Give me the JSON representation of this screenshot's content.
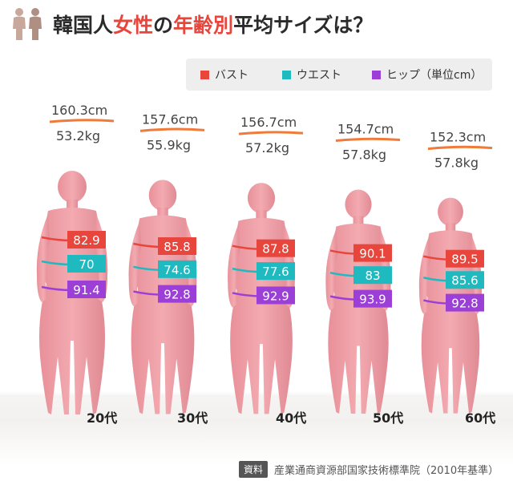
{
  "header": {
    "title_part1": "韓国人",
    "title_highlight1": "女性",
    "title_part2": "の",
    "title_highlight2": "年齢別",
    "title_part3": "平均サイズは？",
    "icon": "women-icon"
  },
  "legend": {
    "items": [
      {
        "label": "バスト",
        "color": "#e8453c"
      },
      {
        "label": "ウエスト",
        "color": "#1fbac0"
      },
      {
        "label": "ヒップ（単位cm）",
        "color": "#9b3fd6"
      }
    ]
  },
  "chart_data": {
    "type": "table",
    "categories": [
      "20代",
      "30代",
      "40代",
      "50代",
      "60代"
    ],
    "unit": "cm",
    "height": [
      "160.3cm",
      "157.6cm",
      "156.7cm",
      "154.7cm",
      "152.3cm"
    ],
    "weight": [
      "53.2kg",
      "55.9kg",
      "57.2kg",
      "57.8kg",
      "57.8kg"
    ],
    "series": [
      {
        "name": "バスト",
        "values": [
          82.9,
          85.8,
          87.8,
          90.1,
          89.5
        ],
        "color": "#e8453c"
      },
      {
        "name": "ウエスト",
        "values": [
          70,
          74.6,
          77.6,
          83,
          85.6
        ],
        "color": "#1fbac0"
      },
      {
        "name": "ヒップ",
        "values": [
          91.4,
          92.8,
          92.9,
          93.9,
          92.8
        ],
        "color": "#9b3fd6"
      }
    ]
  },
  "source": {
    "badge": "資料",
    "text": "産業通商資源部国家技術標準院（2010年基準）"
  }
}
